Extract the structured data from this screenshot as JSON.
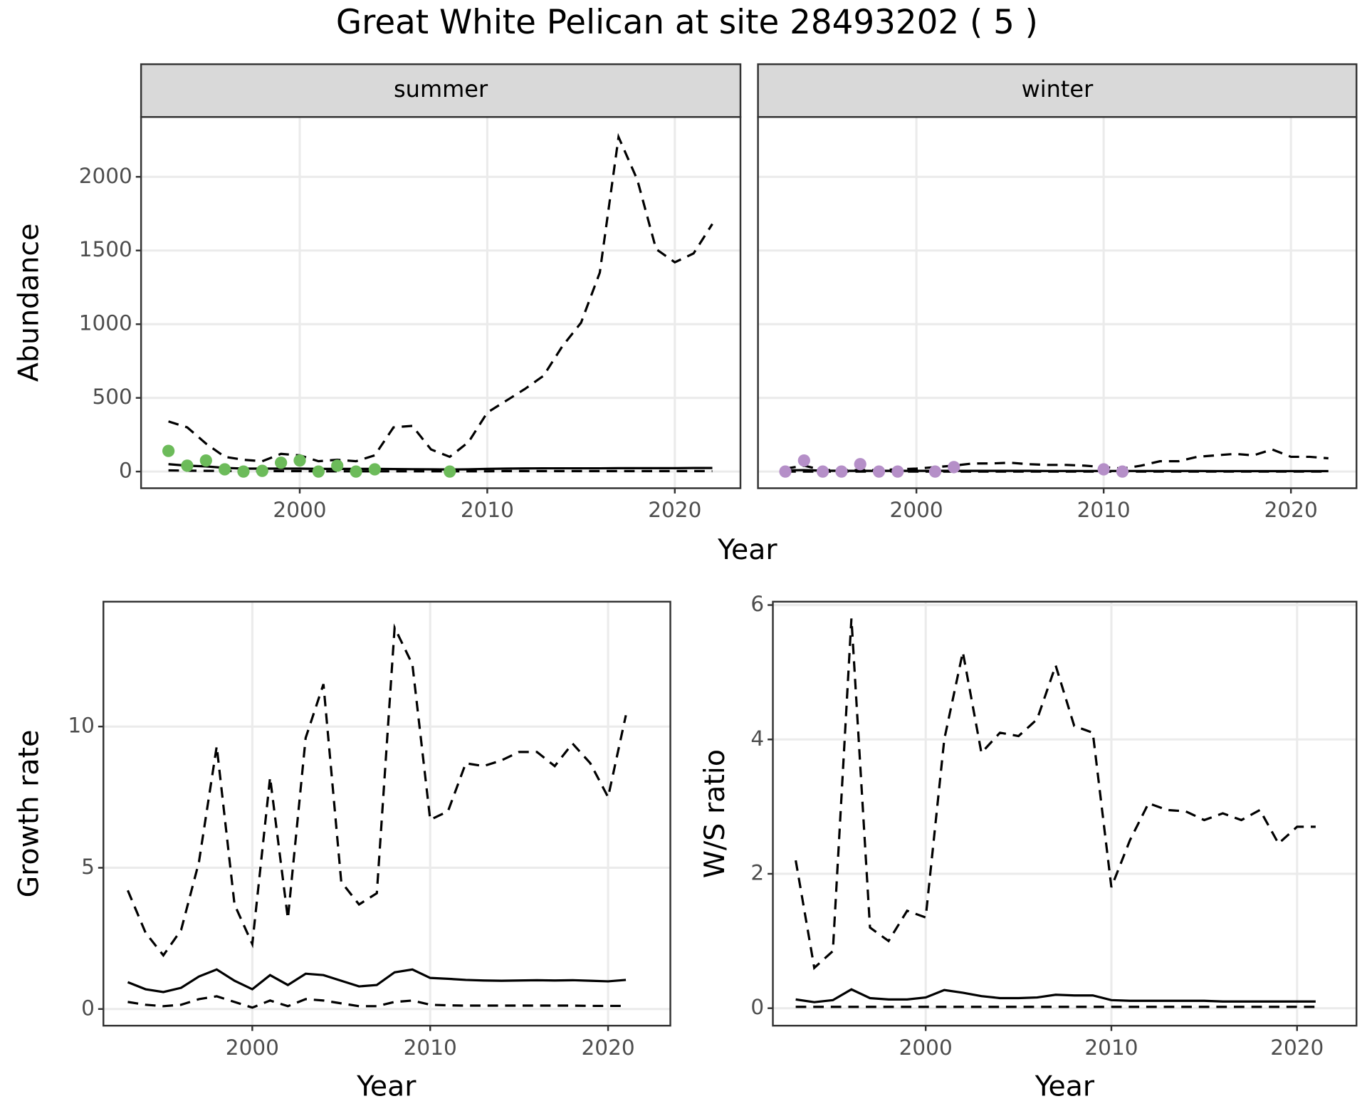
{
  "title": "Great White Pelican at site 28493202 ( 5 )",
  "chart_data": [
    {
      "type": "line",
      "title": "summer",
      "xlabel": "Year",
      "ylabel": "Abundance",
      "xlim": [
        1991.54,
        2023.5
      ],
      "ylim": [
        -113,
        2406
      ],
      "xticks": [
        2000,
        2010,
        2020
      ],
      "yticks": [
        0,
        500,
        1000,
        1500,
        2000
      ],
      "grid": true,
      "x": [
        1993,
        1994,
        1995,
        1996,
        1997,
        1998,
        1999,
        2000,
        2001,
        2002,
        2003,
        2004,
        2005,
        2006,
        2007,
        2008,
        2009,
        2010,
        2011,
        2012,
        2013,
        2014,
        2015,
        2016,
        2017,
        2018,
        2019,
        2020,
        2021,
        2022
      ],
      "series": [
        {
          "style": "dashed",
          "color": "#000000",
          "values": [
            340,
            300,
            190,
            100,
            80,
            70,
            120,
            110,
            70,
            80,
            70,
            110,
            300,
            310,
            150,
            100,
            200,
            400,
            480,
            560,
            650,
            850,
            1010,
            1350,
            2270,
            1980,
            1510,
            1420,
            1480,
            1680
          ]
        },
        {
          "style": "solid",
          "color": "#000000",
          "values": [
            50,
            40,
            35,
            25,
            20,
            20,
            20,
            20,
            18,
            18,
            18,
            18,
            17,
            16,
            15,
            14,
            15,
            18,
            20,
            21,
            22,
            22,
            22,
            22,
            23,
            23,
            23,
            23,
            24,
            24
          ]
        },
        {
          "style": "dashed",
          "color": "#000000",
          "values": [
            8,
            6,
            5,
            4,
            3,
            3,
            3,
            3,
            2,
            2,
            2,
            2,
            2,
            2,
            2,
            2,
            2,
            2,
            3,
            3,
            3,
            3,
            3,
            3,
            3,
            3,
            3,
            3,
            3,
            3
          ]
        },
        {
          "style": "points",
          "color": "#6cbb5a",
          "x": [
            1993,
            1994,
            1995,
            1996,
            1997,
            1998,
            1999,
            2000,
            2001,
            2002,
            2003,
            2004,
            2008
          ],
          "values": [
            140,
            40,
            75,
            15,
            0,
            5,
            60,
            75,
            0,
            40,
            0,
            15,
            0
          ]
        }
      ]
    },
    {
      "type": "line",
      "title": "winter",
      "xlim": [
        1991.54,
        2023.5
      ],
      "ylim": [
        -113,
        2406
      ],
      "xticks": [
        2000,
        2010,
        2020
      ],
      "yticks": [
        0,
        500,
        1000,
        1500,
        2000
      ],
      "grid": true,
      "x": [
        1993,
        1994,
        1995,
        1996,
        1997,
        1998,
        1999,
        2000,
        2001,
        2002,
        2003,
        2004,
        2005,
        2006,
        2007,
        2008,
        2009,
        2010,
        2011,
        2012,
        2013,
        2014,
        2015,
        2016,
        2017,
        2018,
        2019,
        2020,
        2021,
        2022
      ],
      "series": [
        {
          "style": "dashed",
          "color": "#000000",
          "values": [
            20,
            40,
            10,
            10,
            10,
            10,
            15,
            20,
            30,
            40,
            55,
            55,
            60,
            50,
            45,
            45,
            40,
            30,
            20,
            40,
            70,
            70,
            100,
            110,
            120,
            110,
            150,
            100,
            100,
            90
          ]
        },
        {
          "style": "solid",
          "color": "#000000",
          "values": [
            8,
            10,
            6,
            5,
            5,
            5,
            5,
            5,
            5,
            5,
            5,
            5,
            5,
            5,
            4,
            4,
            4,
            4,
            4,
            4,
            4,
            4,
            4,
            3,
            3,
            3,
            3,
            3,
            3,
            3
          ]
        },
        {
          "style": "dashed",
          "color": "#000000",
          "values": [
            0,
            0,
            0,
            0,
            0,
            0,
            0,
            0,
            0,
            0,
            0,
            0,
            0,
            0,
            0,
            0,
            0,
            0,
            0,
            0,
            0,
            0,
            0,
            0,
            0,
            0,
            0,
            0,
            0,
            0
          ]
        },
        {
          "style": "points",
          "color": "#b58fc8",
          "x": [
            1993,
            1994,
            1995,
            1996,
            1997,
            1998,
            1999,
            2001,
            2002,
            2010,
            2011
          ],
          "values": [
            0,
            75,
            0,
            0,
            50,
            0,
            0,
            0,
            30,
            15,
            0
          ]
        }
      ]
    },
    {
      "type": "line",
      "xlabel": "Year",
      "ylabel": "Growth rate",
      "xlim": [
        1991.63,
        2023.5
      ],
      "ylim": [
        -0.59,
        14.42
      ],
      "xticks": [
        2000,
        2010,
        2020
      ],
      "yticks": [
        0,
        5,
        10
      ],
      "grid": true,
      "x": [
        1993,
        1994,
        1995,
        1996,
        1997,
        1998,
        1999,
        2000,
        2001,
        2002,
        2003,
        2004,
        2005,
        2006,
        2007,
        2008,
        2009,
        2010,
        2011,
        2012,
        2013,
        2014,
        2015,
        2016,
        2017,
        2018,
        2019,
        2020,
        2021
      ],
      "series": [
        {
          "style": "dashed",
          "color": "#000000",
          "values": [
            4.2,
            2.7,
            1.9,
            2.8,
            5.2,
            9.3,
            3.7,
            2.3,
            8.2,
            3.2,
            9.6,
            11.5,
            4.5,
            3.7,
            4.1,
            13.5,
            12.2,
            6.7,
            7.0,
            8.7,
            8.6,
            8.8,
            9.1,
            9.1,
            8.6,
            9.4,
            8.7,
            7.5,
            10.4
          ]
        },
        {
          "style": "solid",
          "color": "#000000",
          "values": [
            0.95,
            0.7,
            0.6,
            0.75,
            1.15,
            1.4,
            1.0,
            0.7,
            1.2,
            0.85,
            1.25,
            1.2,
            1.0,
            0.8,
            0.85,
            1.3,
            1.4,
            1.1,
            1.07,
            1.03,
            1.01,
            1.0,
            1.01,
            1.02,
            1.01,
            1.02,
            1.0,
            0.98,
            1.03
          ]
        },
        {
          "style": "dashed",
          "color": "#000000",
          "values": [
            0.25,
            0.15,
            0.1,
            0.15,
            0.35,
            0.45,
            0.25,
            0.05,
            0.3,
            0.1,
            0.35,
            0.3,
            0.2,
            0.1,
            0.1,
            0.25,
            0.3,
            0.15,
            0.13,
            0.12,
            0.12,
            0.12,
            0.12,
            0.12,
            0.12,
            0.12,
            0.11,
            0.11,
            0.11
          ]
        }
      ]
    },
    {
      "type": "line",
      "xlabel": "Year",
      "ylabel": "W/S ratio",
      "xlim": [
        1991.77,
        2023.2
      ],
      "ylim": [
        -0.26,
        6.05
      ],
      "xticks": [
        2000,
        2010,
        2020
      ],
      "yticks": [
        0,
        2,
        4,
        6
      ],
      "grid": true,
      "x": [
        1993,
        1994,
        1995,
        1996,
        1997,
        1998,
        1999,
        2000,
        2001,
        2002,
        2003,
        2004,
        2005,
        2006,
        2007,
        2008,
        2009,
        2010,
        2011,
        2012,
        2013,
        2014,
        2015,
        2016,
        2017,
        2018,
        2019,
        2020,
        2021
      ],
      "series": [
        {
          "style": "dashed",
          "color": "#000000",
          "values": [
            2.2,
            0.6,
            0.85,
            5.8,
            1.2,
            1.0,
            1.45,
            1.35,
            4.0,
            5.3,
            3.8,
            4.1,
            4.05,
            4.3,
            5.1,
            4.2,
            4.1,
            1.8,
            2.5,
            3.05,
            2.95,
            2.93,
            2.8,
            2.9,
            2.8,
            2.95,
            2.45,
            2.7,
            2.7
          ]
        },
        {
          "style": "solid",
          "color": "#000000",
          "values": [
            0.13,
            0.09,
            0.12,
            0.28,
            0.15,
            0.13,
            0.13,
            0.16,
            0.27,
            0.23,
            0.18,
            0.15,
            0.15,
            0.16,
            0.2,
            0.19,
            0.19,
            0.12,
            0.11,
            0.11,
            0.11,
            0.11,
            0.11,
            0.1,
            0.1,
            0.1,
            0.1,
            0.1,
            0.1
          ]
        },
        {
          "style": "dashed",
          "color": "#000000",
          "values": [
            0.02,
            0.02,
            0.02,
            0.02,
            0.02,
            0.02,
            0.02,
            0.02,
            0.02,
            0.02,
            0.02,
            0.02,
            0.02,
            0.02,
            0.02,
            0.02,
            0.02,
            0.02,
            0.02,
            0.02,
            0.02,
            0.02,
            0.02,
            0.02,
            0.02,
            0.02,
            0.02,
            0.02,
            0.02
          ]
        }
      ]
    }
  ]
}
